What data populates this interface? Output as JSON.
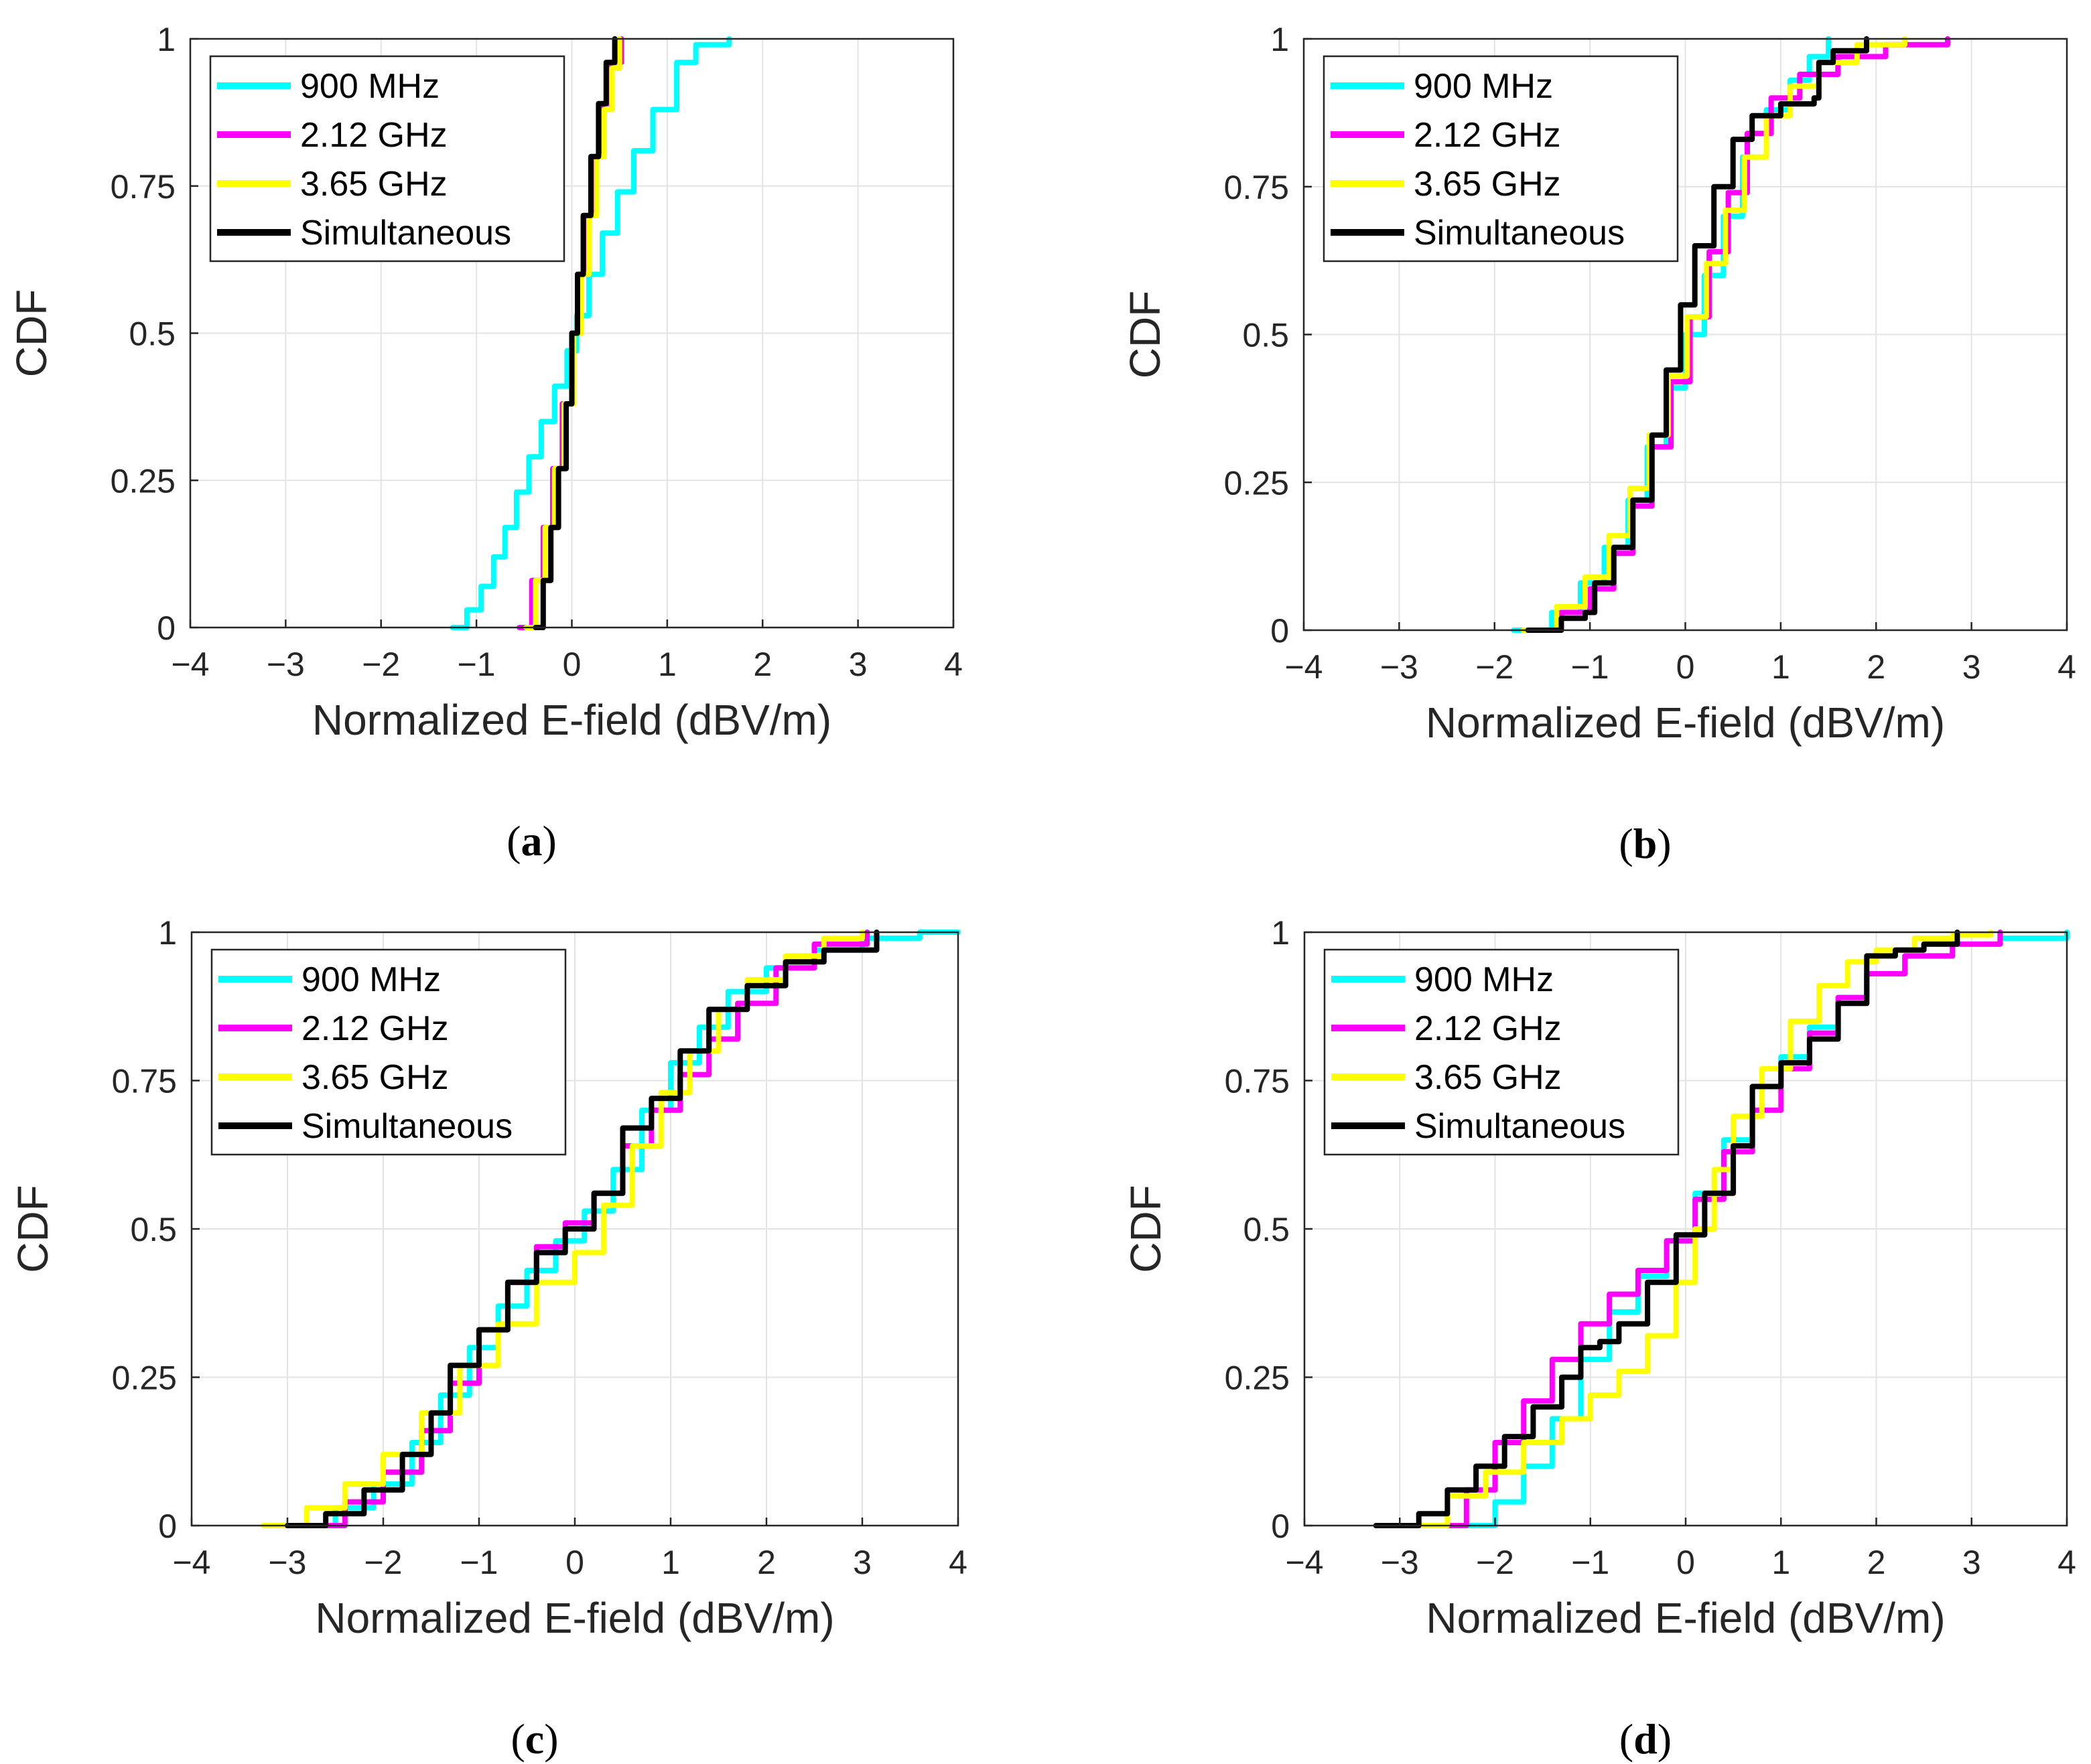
{
  "chart_data": [
    {
      "type": "line",
      "panel_label": "a",
      "xlabel": "Normalized E-field (dBV/m)",
      "ylabel": "CDF",
      "xlim": [
        -4,
        4
      ],
      "ylim": [
        0,
        1
      ],
      "xticks": [
        "−4",
        "−3",
        "−2",
        "−1",
        "0",
        "1",
        "2",
        "3",
        "4"
      ],
      "yticks": [
        "0",
        "0.25",
        "0.5",
        "0.75",
        "1"
      ],
      "grid": true,
      "legend_position": "top-left",
      "series": [
        {
          "name": "900 MHz",
          "color": "#00ffff",
          "x": [
            -1.25,
            -1.1,
            -0.95,
            -0.82,
            -0.7,
            -0.58,
            -0.45,
            -0.32,
            -0.18,
            -0.05,
            0.05,
            0.18,
            0.32,
            0.48,
            0.65,
            0.85,
            1.1,
            1.3,
            1.65
          ],
          "y": [
            0,
            0.03,
            0.07,
            0.12,
            0.17,
            0.23,
            0.29,
            0.35,
            0.41,
            0.47,
            0.53,
            0.6,
            0.67,
            0.74,
            0.81,
            0.88,
            0.96,
            0.99,
            1
          ]
        },
        {
          "name": "2.12 GHz",
          "color": "#ff00ff",
          "x": [
            -0.55,
            -0.42,
            -0.3,
            -0.2,
            -0.1,
            0,
            0.08,
            0.16,
            0.24,
            0.32,
            0.4,
            0.52
          ],
          "y": [
            0,
            0.08,
            0.17,
            0.27,
            0.38,
            0.5,
            0.6,
            0.7,
            0.8,
            0.89,
            0.96,
            1
          ]
        },
        {
          "name": "3.65 GHz",
          "color": "#ffff00",
          "x": [
            -0.48,
            -0.38,
            -0.28,
            -0.18,
            -0.08,
            0.02,
            0.1,
            0.18,
            0.26,
            0.34,
            0.42,
            0.5
          ],
          "y": [
            0,
            0.08,
            0.17,
            0.27,
            0.38,
            0.5,
            0.6,
            0.7,
            0.8,
            0.88,
            0.95,
            1
          ]
        },
        {
          "name": "Simultaneous",
          "color": "#000000",
          "x": [
            -0.38,
            -0.3,
            -0.22,
            -0.14,
            -0.06,
            0,
            0.06,
            0.12,
            0.2,
            0.28,
            0.36,
            0.45
          ],
          "y": [
            0,
            0.08,
            0.17,
            0.27,
            0.38,
            0.5,
            0.6,
            0.7,
            0.8,
            0.89,
            0.96,
            1
          ]
        }
      ]
    },
    {
      "type": "line",
      "panel_label": "b",
      "xlabel": "Normalized E-field (dBV/m)",
      "ylabel": "CDF",
      "xlim": [
        -4,
        4
      ],
      "ylim": [
        0,
        1
      ],
      "xticks": [
        "−4",
        "−3",
        "−2",
        "−1",
        "0",
        "1",
        "2",
        "3",
        "4"
      ],
      "yticks": [
        "0",
        "0.25",
        "0.5",
        "0.75",
        "1"
      ],
      "grid": true,
      "legend_position": "top-left",
      "series": [
        {
          "name": "900 MHz",
          "color": "#00ffff",
          "x": [
            -1.8,
            -1.4,
            -1.1,
            -0.85,
            -0.6,
            -0.4,
            -0.2,
            0,
            0.2,
            0.4,
            0.6,
            0.85,
            1.1,
            1.3,
            1.5
          ],
          "y": [
            0,
            0.03,
            0.08,
            0.14,
            0.22,
            0.31,
            0.41,
            0.5,
            0.6,
            0.7,
            0.8,
            0.88,
            0.93,
            0.97,
            1
          ]
        },
        {
          "name": "2.12 GHz",
          "color": "#ff00ff",
          "x": [
            -1.6,
            -1.3,
            -1,
            -0.75,
            -0.55,
            -0.35,
            -0.15,
            0.05,
            0.25,
            0.45,
            0.65,
            0.9,
            1.2,
            1.6,
            2.1,
            2.75
          ],
          "y": [
            0,
            0.03,
            0.07,
            0.13,
            0.21,
            0.31,
            0.42,
            0.53,
            0.64,
            0.74,
            0.84,
            0.9,
            0.94,
            0.97,
            0.99,
            1
          ]
        },
        {
          "name": "3.65 GHz",
          "color": "#ffff00",
          "x": [
            -1.7,
            -1.35,
            -1.05,
            -0.8,
            -0.58,
            -0.38,
            -0.18,
            0.02,
            0.22,
            0.42,
            0.62,
            0.85,
            1.1,
            1.4,
            1.8,
            2.3
          ],
          "y": [
            0,
            0.04,
            0.09,
            0.16,
            0.24,
            0.33,
            0.43,
            0.53,
            0.62,
            0.71,
            0.8,
            0.87,
            0.92,
            0.96,
            0.99,
            1
          ]
        },
        {
          "name": "Simultaneous",
          "color": "#000000",
          "x": [
            -1.65,
            -1.3,
            -1.05,
            -0.95,
            -0.75,
            -0.55,
            -0.35,
            -0.2,
            -0.05,
            0.1,
            0.3,
            0.5,
            0.7,
            1,
            1.35,
            1.4,
            1.55,
            1.9
          ],
          "y": [
            0,
            0.02,
            0.03,
            0.08,
            0.14,
            0.22,
            0.33,
            0.44,
            0.55,
            0.65,
            0.75,
            0.83,
            0.87,
            0.89,
            0.9,
            0.96,
            0.98,
            1
          ]
        }
      ]
    },
    {
      "type": "line",
      "panel_label": "c",
      "xlabel": "Normalized E-field (dBV/m)",
      "ylabel": "CDF",
      "xlim": [
        -4,
        4
      ],
      "ylim": [
        0,
        1
      ],
      "xticks": [
        "−4",
        "−3",
        "−2",
        "−1",
        "0",
        "1",
        "2",
        "3",
        "4"
      ],
      "yticks": [
        "0",
        "0.25",
        "0.5",
        "0.75",
        "1"
      ],
      "grid": true,
      "legend_position": "top-left",
      "series": [
        {
          "name": "900 MHz",
          "color": "#00ffff",
          "x": [
            -2.9,
            -2.5,
            -2.1,
            -1.7,
            -1.4,
            -1.1,
            -0.8,
            -0.5,
            -0.2,
            0.1,
            0.4,
            0.7,
            1,
            1.3,
            1.6,
            2,
            2.5,
            3,
            3.6,
            4
          ],
          "y": [
            0,
            0.03,
            0.07,
            0.14,
            0.22,
            0.3,
            0.37,
            0.43,
            0.48,
            0.53,
            0.6,
            0.7,
            0.78,
            0.84,
            0.9,
            0.94,
            0.97,
            0.99,
            1,
            1
          ]
        },
        {
          "name": "2.12 GHz",
          "color": "#ff00ff",
          "x": [
            -2.9,
            -2.4,
            -2,
            -1.6,
            -1.3,
            -1,
            -0.7,
            -0.4,
            -0.1,
            0.2,
            0.5,
            0.8,
            1.1,
            1.4,
            1.7,
            2.1,
            2.5,
            3.05
          ],
          "y": [
            0,
            0.04,
            0.09,
            0.16,
            0.24,
            0.33,
            0.41,
            0.47,
            0.51,
            0.56,
            0.64,
            0.7,
            0.76,
            0.82,
            0.88,
            0.94,
            0.98,
            1
          ]
        },
        {
          "name": "3.65 GHz",
          "color": "#ffff00",
          "x": [
            -3.25,
            -2.8,
            -2.4,
            -2,
            -1.6,
            -1.2,
            -0.8,
            -0.4,
            0,
            0.3,
            0.6,
            0.9,
            1.2,
            1.5,
            1.8,
            2.2,
            2.6,
            3
          ],
          "y": [
            0,
            0.03,
            0.07,
            0.12,
            0.19,
            0.27,
            0.34,
            0.41,
            0.46,
            0.54,
            0.64,
            0.73,
            0.8,
            0.87,
            0.92,
            0.96,
            0.99,
            1
          ]
        },
        {
          "name": "Simultaneous",
          "color": "#000000",
          "x": [
            -3,
            -2.6,
            -2.2,
            -1.8,
            -1.5,
            -1.3,
            -1,
            -0.7,
            -0.4,
            -0.1,
            0.2,
            0.5,
            0.8,
            1.1,
            1.4,
            1.8,
            2.2,
            2.6,
            3.15
          ],
          "y": [
            0,
            0.02,
            0.06,
            0.12,
            0.19,
            0.27,
            0.33,
            0.41,
            0.46,
            0.5,
            0.56,
            0.67,
            0.72,
            0.8,
            0.87,
            0.91,
            0.95,
            0.97,
            1
          ]
        }
      ]
    },
    {
      "type": "line",
      "panel_label": "d",
      "xlabel": "Normalized E-field (dBV/m)",
      "ylabel": "CDF",
      "xlim": [
        -4,
        4
      ],
      "ylim": [
        0,
        1
      ],
      "xticks": [
        "−4",
        "−3",
        "−2",
        "−1",
        "0",
        "1",
        "2",
        "3",
        "4"
      ],
      "yticks": [
        "0",
        "0.25",
        "0.5",
        "0.75",
        "1"
      ],
      "grid": true,
      "legend_position": "top-left",
      "series": [
        {
          "name": "900 MHz",
          "color": "#00ffff",
          "x": [
            -2.4,
            -2,
            -1.7,
            -1.4,
            -1.1,
            -0.8,
            -0.5,
            -0.2,
            0.1,
            0.4,
            0.7,
            1,
            1.3,
            1.6,
            1.9,
            2.3,
            2.8,
            3.3,
            4
          ],
          "y": [
            0,
            0.04,
            0.1,
            0.18,
            0.28,
            0.36,
            0.42,
            0.48,
            0.56,
            0.65,
            0.74,
            0.79,
            0.84,
            0.89,
            0.93,
            0.96,
            0.98,
            0.99,
            1
          ]
        },
        {
          "name": "2.12 GHz",
          "color": "#ff00ff",
          "x": [
            -2.7,
            -2.3,
            -2,
            -1.7,
            -1.4,
            -1.1,
            -0.8,
            -0.5,
            -0.2,
            0.1,
            0.4,
            0.7,
            1,
            1.3,
            1.6,
            1.9,
            2.3,
            2.8,
            3.3
          ],
          "y": [
            0,
            0.06,
            0.14,
            0.21,
            0.28,
            0.34,
            0.39,
            0.43,
            0.48,
            0.55,
            0.63,
            0.7,
            0.77,
            0.83,
            0.89,
            0.93,
            0.96,
            0.98,
            1
          ]
        },
        {
          "name": "3.65 GHz",
          "color": "#ffff00",
          "x": [
            -3,
            -2.5,
            -2.1,
            -1.7,
            -1.3,
            -1,
            -0.7,
            -0.4,
            -0.1,
            0.1,
            0.3,
            0.5,
            0.8,
            1.1,
            1.4,
            1.7,
            2,
            2.4,
            2.8,
            3.2
          ],
          "y": [
            0,
            0.05,
            0.09,
            0.14,
            0.18,
            0.22,
            0.26,
            0.32,
            0.41,
            0.5,
            0.6,
            0.69,
            0.77,
            0.85,
            0.91,
            0.95,
            0.97,
            0.99,
            0.995,
            1
          ]
        },
        {
          "name": "Simultaneous",
          "color": "#000000",
          "x": [
            -3.25,
            -2.8,
            -2.5,
            -2.2,
            -1.9,
            -1.6,
            -1.3,
            -1.1,
            -0.9,
            -0.7,
            -0.4,
            -0.1,
            0.2,
            0.5,
            0.7,
            1,
            1.3,
            1.6,
            1.9,
            2.2,
            2.5,
            2.85
          ],
          "y": [
            0,
            0.02,
            0.06,
            0.1,
            0.15,
            0.2,
            0.25,
            0.3,
            0.31,
            0.34,
            0.41,
            0.49,
            0.56,
            0.64,
            0.74,
            0.78,
            0.82,
            0.88,
            0.96,
            0.97,
            0.98,
            1
          ]
        }
      ]
    }
  ]
}
